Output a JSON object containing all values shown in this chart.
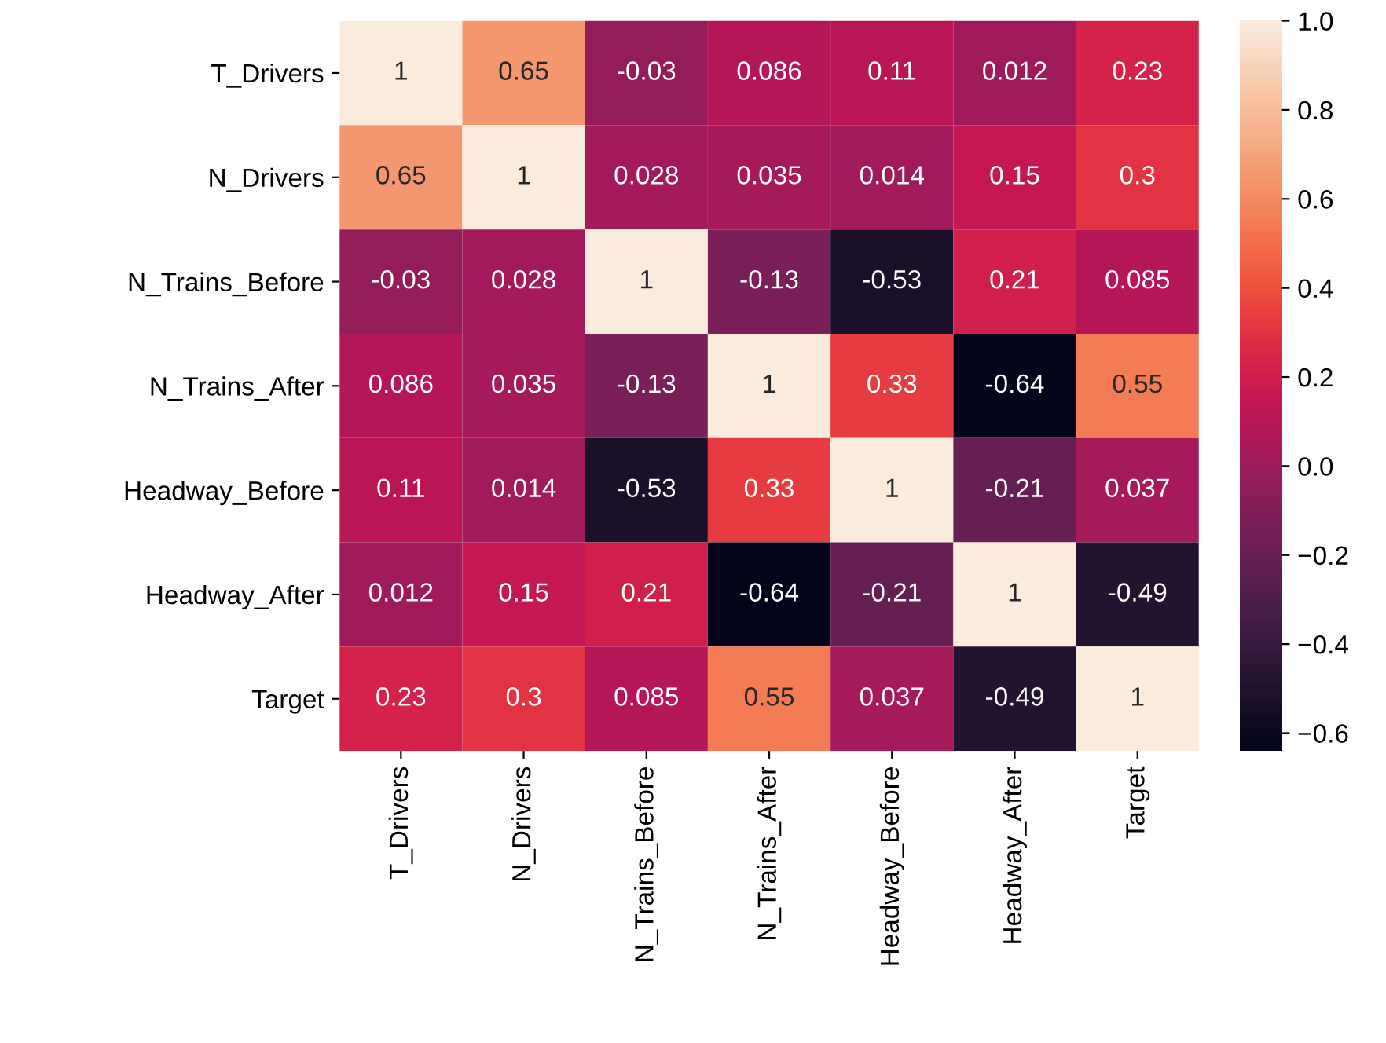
{
  "chart_data": {
    "type": "heatmap",
    "categories": [
      "T_Drivers",
      "N_Drivers",
      "N_Trains_Before",
      "N_Trains_After",
      "Headway_Before",
      "Headway_After",
      "Target"
    ],
    "y_categories": [
      "T_Drivers",
      "N_Drivers",
      "N_Trains_Before",
      "N_Trains_After",
      "Headway_Before",
      "Headway_After",
      "Target"
    ],
    "cells": [
      [
        1,
        0.65,
        -0.03,
        0.086,
        0.11,
        0.012,
        0.23
      ],
      [
        0.65,
        1,
        0.028,
        0.035,
        0.014,
        0.15,
        0.3
      ],
      [
        -0.03,
        0.028,
        1,
        -0.13,
        -0.53,
        0.21,
        0.085
      ],
      [
        0.086,
        0.035,
        -0.13,
        1,
        0.33,
        -0.64,
        0.55
      ],
      [
        0.11,
        0.014,
        -0.53,
        0.33,
        1,
        -0.21,
        0.037
      ],
      [
        0.012,
        0.15,
        0.21,
        -0.64,
        -0.21,
        1,
        -0.49
      ],
      [
        0.23,
        0.3,
        0.085,
        0.55,
        0.037,
        -0.49,
        1
      ]
    ],
    "clim": [
      -0.64,
      1
    ],
    "cticks": [
      {
        "value": -0.6,
        "label": "−0.6"
      },
      {
        "value": -0.4,
        "label": "−0.4"
      },
      {
        "value": -0.2,
        "label": "−0.2"
      },
      {
        "value": 0,
        "label": "0.0"
      },
      {
        "value": 0.2,
        "label": "0.2"
      },
      {
        "value": 0.4,
        "label": "0.4"
      },
      {
        "value": 0.6,
        "label": "0.6"
      },
      {
        "value": 0.8,
        "label": "0.8"
      },
      {
        "value": 1,
        "label": "1.0"
      }
    ],
    "data_labels": true
  }
}
